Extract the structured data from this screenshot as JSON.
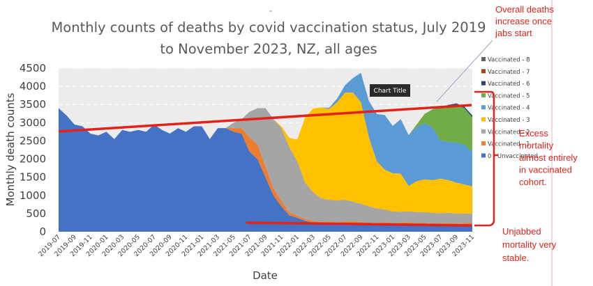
{
  "chart_data": {
    "type": "area",
    "stacked": true,
    "title_lines": [
      "Monthly counts of deaths by covid vaccination status, July 2019",
      "to November 2023, NZ, all ages"
    ],
    "xlabel": "Date",
    "ylabel": "Monthly death counts",
    "ylim": [
      0,
      4500
    ],
    "yticks": [
      "0",
      "500",
      "1000",
      "1500",
      "2000",
      "2500",
      "3000",
      "3500",
      "4000",
      "4500"
    ],
    "grid": true,
    "legend_position": "right",
    "x_tick_labels": [
      "2019-07",
      "2019-09",
      "2019-11",
      "2020-01",
      "2020-03",
      "2020-05",
      "2020-07",
      "2020-09",
      "2020-11",
      "2021-01",
      "2021-03",
      "2021-05",
      "2021-07",
      "2021-09",
      "2021-11",
      "2022-01",
      "2022-03",
      "2022-05",
      "2022-07",
      "2022-09",
      "2022-11",
      "2023-01",
      "2023-03",
      "2023-05",
      "2023-07",
      "2023-09",
      "2023-11"
    ],
    "series": [
      {
        "name": "0 - Unvaccinated",
        "color": "#4472c4",
        "values": [
          3400,
          3200,
          2950,
          2900,
          2700,
          2650,
          2750,
          2550,
          2800,
          2750,
          2800,
          2750,
          2950,
          2800,
          2700,
          2850,
          2750,
          2900,
          2900,
          2550,
          2850,
          2850,
          2750,
          2700,
          2200,
          2000,
          1500,
          1000,
          700,
          450,
          380,
          300,
          250,
          230,
          240,
          220,
          240,
          240,
          230,
          210,
          200,
          220,
          200,
          210,
          220,
          200,
          200,
          190,
          190,
          200,
          190,
          200,
          200
        ]
      },
      {
        "name": "Vaccinated - 1",
        "color": "#ed7d31",
        "values": [
          0,
          0,
          0,
          0,
          0,
          0,
          0,
          0,
          0,
          0,
          0,
          0,
          0,
          0,
          0,
          0,
          0,
          0,
          0,
          0,
          0,
          0,
          100,
          150,
          400,
          400,
          300,
          200,
          150,
          80,
          60,
          50,
          40,
          40,
          40,
          40,
          40,
          40,
          40,
          40,
          40,
          40,
          40,
          40,
          40,
          40,
          40,
          40,
          40,
          40,
          40,
          40,
          40
        ]
      },
      {
        "name": "Vaccinated - 2",
        "color": "#a5a5a5",
        "values": [
          0,
          0,
          0,
          0,
          0,
          0,
          0,
          0,
          0,
          0,
          0,
          0,
          0,
          0,
          0,
          0,
          0,
          0,
          0,
          0,
          0,
          0,
          150,
          250,
          700,
          1000,
          1600,
          1900,
          2000,
          1800,
          1500,
          1000,
          800,
          650,
          600,
          600,
          600,
          550,
          500,
          450,
          400,
          350,
          320,
          300,
          300,
          300,
          300,
          290,
          280,
          280,
          270,
          260,
          260
        ]
      },
      {
        "name": "Vaccinated - 3",
        "color": "#ffc000",
        "values": [
          0,
          0,
          0,
          0,
          0,
          0,
          0,
          0,
          0,
          0,
          0,
          0,
          0,
          0,
          0,
          0,
          0,
          0,
          0,
          0,
          0,
          0,
          0,
          0,
          0,
          0,
          0,
          0,
          50,
          250,
          600,
          1800,
          2300,
          2500,
          2500,
          2700,
          2950,
          3000,
          2800,
          1900,
          1300,
          1100,
          1050,
          1050,
          700,
          850,
          900,
          900,
          950,
          900,
          850,
          800,
          750
        ]
      },
      {
        "name": "Vaccinated - 4",
        "color": "#5b9bd5",
        "values": [
          0,
          0,
          0,
          0,
          0,
          0,
          0,
          0,
          0,
          0,
          0,
          0,
          0,
          0,
          0,
          0,
          0,
          0,
          0,
          0,
          0,
          0,
          0,
          0,
          0,
          0,
          0,
          0,
          0,
          0,
          0,
          0,
          0,
          0,
          30,
          100,
          200,
          400,
          800,
          1000,
          1300,
          1500,
          1300,
          1500,
          1400,
          1500,
          1550,
          1450,
          1050,
          1050,
          1100,
          1100,
          950
        ]
      },
      {
        "name": "Vaccinated - 5",
        "color": "#70ad47",
        "values": [
          0,
          0,
          0,
          0,
          0,
          0,
          0,
          0,
          0,
          0,
          0,
          0,
          0,
          0,
          0,
          0,
          0,
          0,
          0,
          0,
          0,
          0,
          0,
          0,
          0,
          0,
          0,
          0,
          0,
          0,
          0,
          0,
          0,
          0,
          0,
          0,
          0,
          0,
          0,
          0,
          0,
          0,
          0,
          0,
          0,
          60,
          250,
          500,
          900,
          1000,
          1050,
          1000,
          950
        ]
      },
      {
        "name": "Vaccinated - 6",
        "color": "#264478",
        "values": [
          0,
          0,
          0,
          0,
          0,
          0,
          0,
          0,
          0,
          0,
          0,
          0,
          0,
          0,
          0,
          0,
          0,
          0,
          0,
          0,
          0,
          0,
          0,
          0,
          0,
          0,
          0,
          0,
          0,
          0,
          0,
          0,
          0,
          0,
          0,
          0,
          0,
          0,
          0,
          0,
          0,
          0,
          0,
          0,
          0,
          0,
          0,
          0,
          10,
          20,
          30,
          40,
          50
        ]
      },
      {
        "name": "Vaccinated - 7",
        "color": "#9e480e",
        "values": [
          0,
          0,
          0,
          0,
          0,
          0,
          0,
          0,
          0,
          0,
          0,
          0,
          0,
          0,
          0,
          0,
          0,
          0,
          0,
          0,
          0,
          0,
          0,
          0,
          0,
          0,
          0,
          0,
          0,
          0,
          0,
          0,
          0,
          0,
          0,
          0,
          0,
          0,
          0,
          0,
          0,
          0,
          0,
          0,
          0,
          0,
          0,
          0,
          0,
          0,
          0,
          0,
          0
        ]
      },
      {
        "name": "Vaccinated - 8",
        "color": "#636363",
        "values": [
          0,
          0,
          0,
          0,
          0,
          0,
          0,
          0,
          0,
          0,
          0,
          0,
          0,
          0,
          0,
          0,
          0,
          0,
          0,
          0,
          0,
          0,
          0,
          0,
          0,
          0,
          0,
          0,
          0,
          0,
          0,
          0,
          0,
          0,
          0,
          0,
          0,
          0,
          0,
          0,
          0,
          0,
          0,
          0,
          0,
          0,
          0,
          0,
          0,
          0,
          0,
          0,
          0
        ]
      }
    ],
    "badge_label": "Chart Title",
    "annotations": [
      {
        "id": "overall",
        "lines": [
          "Overall deaths",
          "increase once",
          "jabs start"
        ]
      },
      {
        "id": "excess",
        "lines": [
          "Excess",
          "mortality",
          "almost entirely",
          "in vaccinated",
          "cohort."
        ]
      },
      {
        "id": "unjabbed",
        "lines": [
          "Unjabbed",
          "mortality  very",
          "stable."
        ]
      }
    ]
  }
}
